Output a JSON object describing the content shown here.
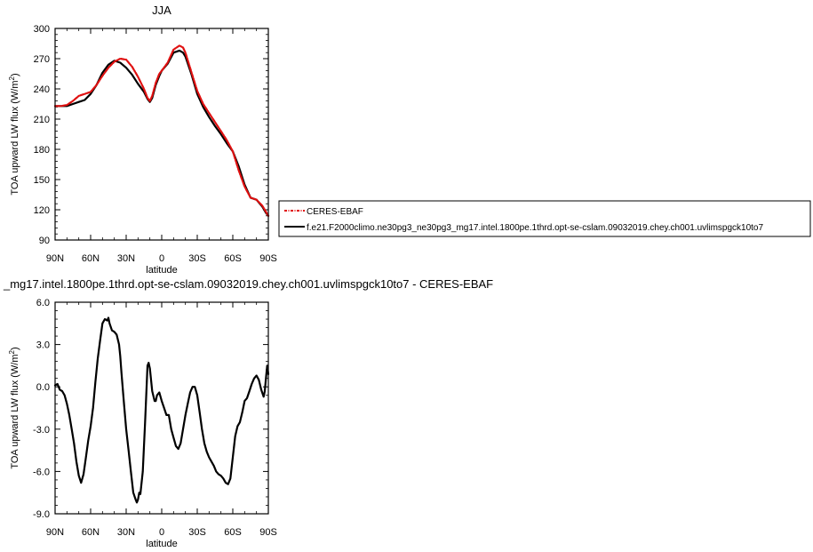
{
  "chart_data": [
    {
      "type": "line",
      "title": "JJA",
      "xlabel": "latitude",
      "ylabel": "TOA upward LW flux (W/m²)",
      "ylabel_main": "TOA upward LW flux (W/m",
      "ylabel_sup": "2",
      "ylabel_close": ")",
      "xlim": [
        90,
        -90
      ],
      "ylim": [
        90,
        300
      ],
      "x_ticks": [
        90,
        60,
        30,
        0,
        -30,
        -60,
        -90
      ],
      "x_tick_labels": [
        "90N",
        "60N",
        "30N",
        "0",
        "30S",
        "60S",
        "90S"
      ],
      "y_ticks": [
        90,
        120,
        150,
        180,
        210,
        240,
        270,
        300
      ],
      "y_tick_labels": [
        "90",
        "120",
        "150",
        "180",
        "210",
        "240",
        "270",
        "300"
      ],
      "legend_position": "right",
      "series": [
        {
          "name": "CERES-EBAF",
          "color": "#e01010",
          "dashed": true,
          "x": [
            90,
            85,
            80,
            75,
            70,
            65,
            60,
            55,
            50,
            45,
            40,
            35,
            30,
            25,
            20,
            15,
            12,
            10,
            8,
            5,
            2,
            0,
            -5,
            -10,
            -15,
            -18,
            -20,
            -25,
            -30,
            -35,
            -40,
            -45,
            -50,
            -55,
            -60,
            -65,
            -70,
            -75,
            -80,
            -85,
            -88,
            -90
          ],
          "y": [
            223,
            223,
            224,
            228,
            233,
            235,
            237,
            244,
            253,
            261,
            267,
            270,
            269,
            262,
            252,
            240,
            231,
            228,
            233,
            246,
            255,
            258,
            266,
            279,
            283,
            281,
            276,
            257,
            238,
            225,
            216,
            207,
            198,
            189,
            178,
            159,
            143,
            132,
            130,
            124,
            118,
            114
          ]
        },
        {
          "name": "f.e21.F2000climo.ne30pg3_ne30pg3_mg17.intel.1800pe.1thrd.opt-se-cslam.09032019.chey.ch001.uvlimspgck10to7",
          "color": "#000000",
          "dashed": false,
          "x": [
            90,
            85,
            80,
            75,
            70,
            65,
            60,
            55,
            50,
            45,
            40,
            35,
            30,
            25,
            20,
            15,
            12,
            10,
            8,
            5,
            2,
            0,
            -5,
            -10,
            -15,
            -18,
            -20,
            -25,
            -30,
            -35,
            -40,
            -45,
            -50,
            -55,
            -60,
            -65,
            -70,
            -75,
            -80,
            -85,
            -88,
            -90
          ],
          "y": [
            223,
            223,
            223,
            225,
            227,
            229,
            235,
            244,
            256,
            264,
            268,
            266,
            261,
            254,
            245,
            237,
            230,
            227,
            231,
            244,
            253,
            258,
            265,
            276,
            278,
            276,
            272,
            255,
            235,
            222,
            212,
            203,
            195,
            186,
            178,
            163,
            145,
            132,
            130,
            123,
            117,
            114
          ]
        }
      ]
    },
    {
      "type": "line",
      "title": "_mg17.intel.1800pe.1thrd.opt-se-cslam.09032019.chey.ch001.uvlimspgck10to7 - CERES-EBAF",
      "xlabel": "latitude",
      "ylabel": "TOA upward LW flux (W/m²)",
      "ylabel_main": "TOA upward LW flux (W/m",
      "ylabel_sup": "2",
      "ylabel_close": ")",
      "xlim": [
        90,
        -90
      ],
      "ylim": [
        -9,
        6
      ],
      "x_ticks": [
        90,
        60,
        30,
        0,
        -30,
        -60,
        -90
      ],
      "x_tick_labels": [
        "90N",
        "60N",
        "30N",
        "0",
        "30S",
        "60S",
        "90S"
      ],
      "y_ticks": [
        -9,
        -6,
        -3,
        0,
        3,
        6
      ],
      "y_tick_labels": [
        "-9.0",
        "-6.0",
        "-3.0",
        "0.0",
        "3.0",
        "6.0"
      ],
      "series": [
        {
          "color": "#000000",
          "x": [
            90,
            88,
            86,
            84,
            82,
            80,
            78,
            76,
            74,
            72,
            70,
            68,
            66,
            64,
            62,
            60,
            58,
            56,
            54,
            52,
            50,
            48,
            46,
            45,
            44,
            42,
            40,
            38,
            36,
            35,
            34,
            32,
            30,
            28,
            26,
            24,
            22,
            21,
            20,
            19,
            18,
            16,
            14,
            12,
            11,
            10,
            9,
            8,
            6,
            5,
            4,
            2,
            0,
            -2,
            -4,
            -6,
            -8,
            -10,
            -12,
            -14,
            -16,
            -18,
            -20,
            -22,
            -24,
            -26,
            -28,
            -30,
            -32,
            -34,
            -36,
            -38,
            -40,
            -42,
            -44,
            -46,
            -48,
            -50,
            -52,
            -54,
            -56,
            -58,
            -60,
            -62,
            -64,
            -66,
            -68,
            -70,
            -72,
            -74,
            -76,
            -78,
            -80,
            -82,
            -84,
            -86,
            -87,
            -88,
            -89,
            -90
          ],
          "y": [
            0.1,
            0.2,
            -0.2,
            -0.3,
            -0.6,
            -1.2,
            -2.0,
            -3.0,
            -4.0,
            -5.3,
            -6.3,
            -6.8,
            -6.2,
            -5.0,
            -3.8,
            -2.8,
            -1.5,
            0.3,
            2.0,
            3.3,
            4.5,
            4.8,
            4.7,
            4.9,
            4.5,
            4.0,
            3.9,
            3.7,
            3.0,
            2.2,
            1.0,
            -1.0,
            -3.0,
            -4.5,
            -6.0,
            -7.5,
            -8.0,
            -8.2,
            -8.0,
            -7.5,
            -7.6,
            -6.0,
            -2.5,
            1.5,
            1.7,
            1.3,
            0.5,
            -0.3,
            -1.0,
            -1.0,
            -0.6,
            -0.4,
            -1.0,
            -1.5,
            -2.0,
            -2.0,
            -3.0,
            -3.6,
            -4.2,
            -4.4,
            -4.0,
            -3.0,
            -2.0,
            -1.2,
            -0.4,
            0.0,
            0.0,
            -0.6,
            -1.8,
            -3.0,
            -4.0,
            -4.6,
            -5.0,
            -5.3,
            -5.6,
            -6.0,
            -6.2,
            -6.3,
            -6.5,
            -6.8,
            -6.9,
            -6.5,
            -5.0,
            -3.5,
            -2.8,
            -2.5,
            -1.8,
            -1.0,
            -0.8,
            -0.3,
            0.2,
            0.6,
            0.8,
            0.5,
            -0.2,
            -0.7,
            -0.3,
            0.6,
            1.5,
            0.9
          ]
        }
      ]
    }
  ]
}
